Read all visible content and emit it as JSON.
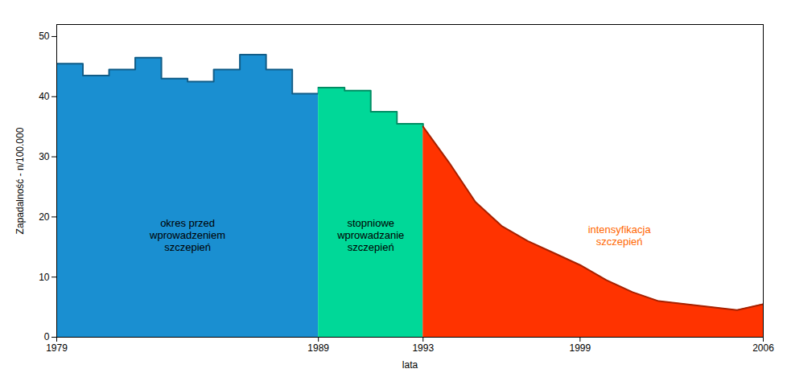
{
  "chart_data": {
    "type": "area",
    "xlabel": "lata",
    "ylabel": "Zapadalność - n/100.000",
    "xlim": [
      1979,
      2006
    ],
    "xticks": [
      1979,
      1989,
      1993,
      1999,
      2006
    ],
    "ylim": [
      0,
      52
    ],
    "yticks": [
      0,
      10,
      20,
      30,
      40,
      50
    ],
    "grid": false,
    "series": [
      {
        "type": "step_area",
        "color": "#1a8fd1",
        "x": [
          1979,
          1980,
          1981,
          1982,
          1983,
          1984,
          1985,
          1986,
          1987,
          1988,
          1989
        ],
        "values": [
          45.5,
          43.5,
          44.5,
          46.5,
          43.0,
          42.5,
          44.5,
          47.0,
          44.5,
          40.5,
          41.5
        ]
      },
      {
        "type": "step_area",
        "color": "#00d898",
        "x": [
          1989,
          1990,
          1991,
          1992,
          1993
        ],
        "values": [
          41.5,
          41.0,
          37.5,
          35.5,
          35.0
        ]
      },
      {
        "type": "area",
        "color": "#ff3300",
        "x": [
          1993,
          1994,
          1995,
          1996,
          1997,
          1998,
          1999,
          2000,
          2001,
          2002,
          2003,
          2004,
          2005,
          2006
        ],
        "values": [
          35.0,
          29.0,
          22.5,
          18.5,
          16.0,
          14.0,
          12.0,
          9.5,
          7.5,
          6.0,
          5.5,
          5.0,
          4.5,
          5.5
        ]
      }
    ],
    "annotations": [
      {
        "text": "okres przed\nwprowadzeniem\nszczepień",
        "x": 1984.0,
        "y": 17,
        "color": "#000000"
      },
      {
        "text": "stopniowe\nwprowadzanie\nszczepień",
        "x": 1991.0,
        "y": 17,
        "color": "#000000"
      },
      {
        "text": "intensyfikacja\nszczepień",
        "x": 2000.5,
        "y": 17,
        "color": "#ff6600"
      }
    ]
  }
}
